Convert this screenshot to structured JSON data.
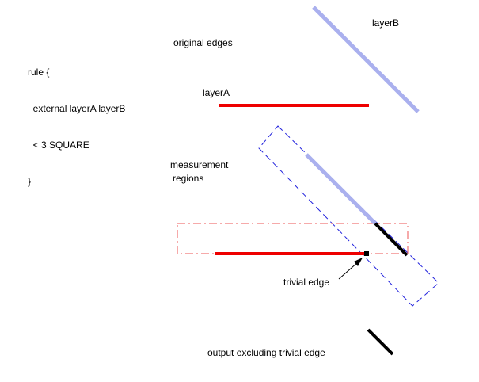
{
  "rule": {
    "lines": [
      "rule {",
      "  external layerA layerB",
      "  < 3 SQUARE",
      "}"
    ]
  },
  "labels": {
    "original_edges": "original edges",
    "layer_a": "layerA",
    "layer_b": "layerB",
    "measurement_line1": "measurement",
    "measurement_line2": "regions",
    "trivial_edge": "trivial edge",
    "output": "output excluding trivial edge"
  },
  "colors": {
    "layer_a": "#ee0000",
    "layer_b": "#aab0ee",
    "region_a": "#ee5555",
    "region_b": "#2222dd",
    "output_edge": "#000000"
  }
}
